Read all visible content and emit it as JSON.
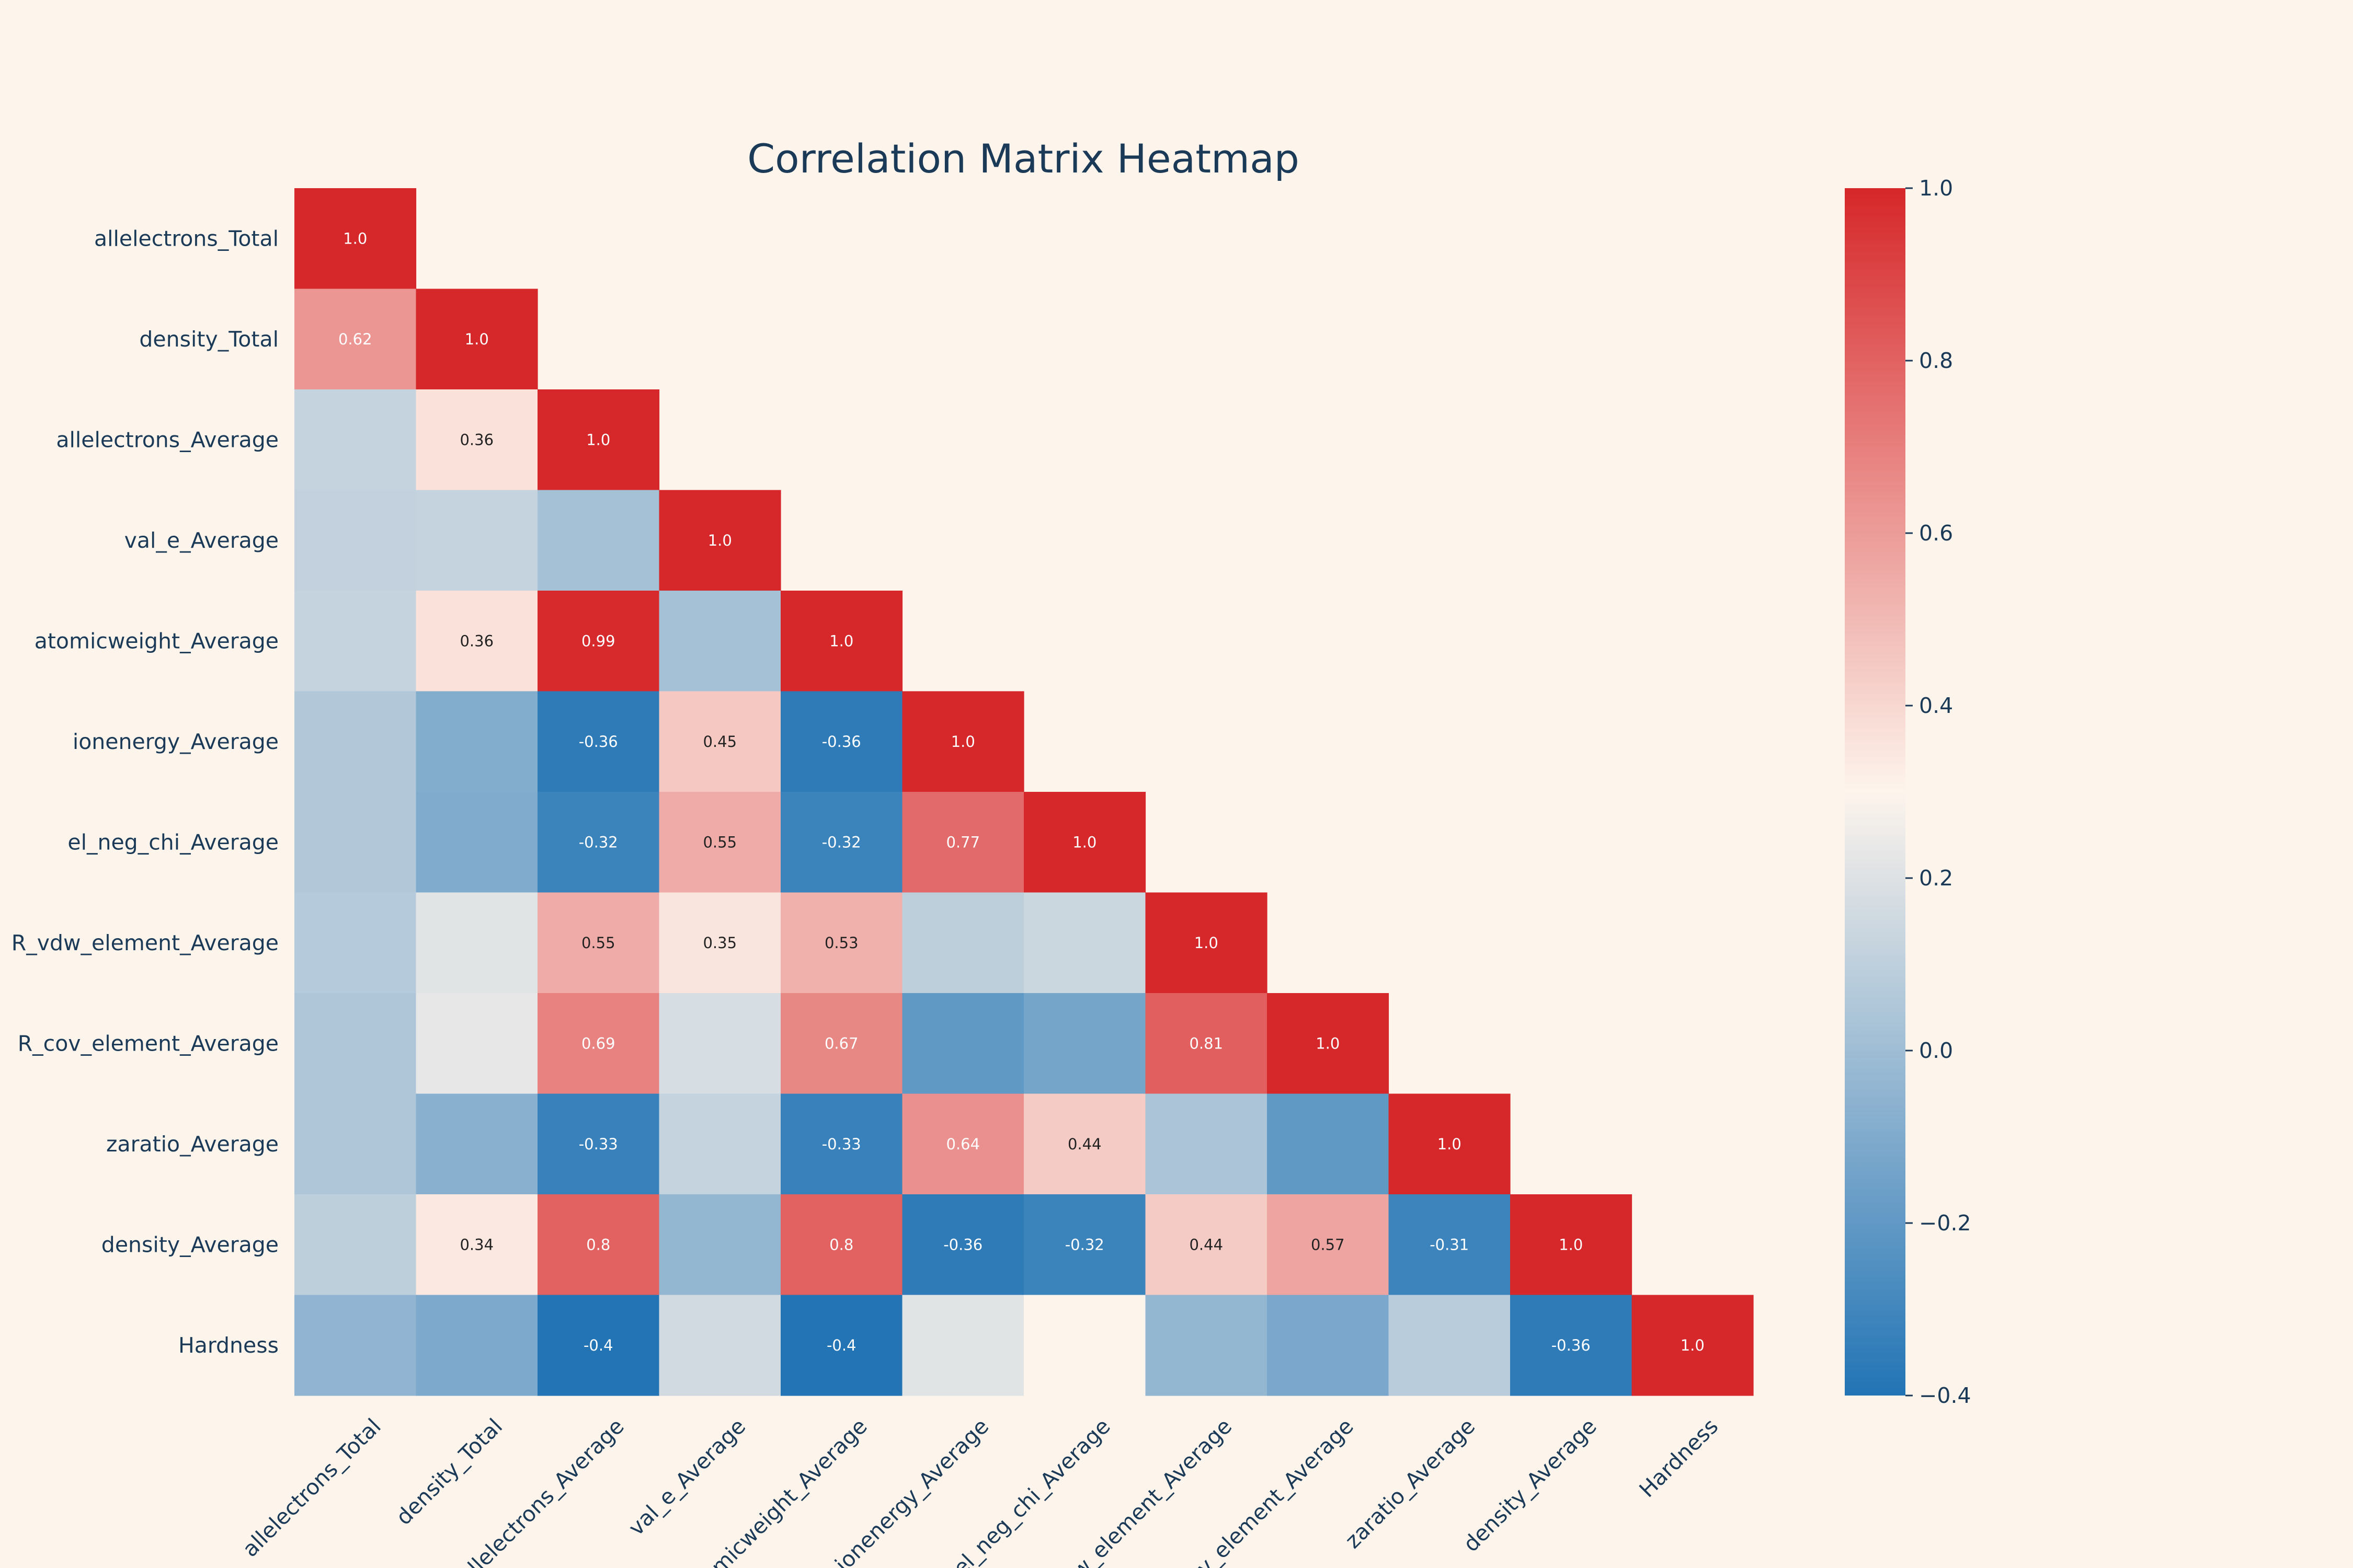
{
  "chart_data": {
    "type": "heatmap",
    "title": "Correlation Matrix Heatmap",
    "labels": [
      "allelectrons_Total",
      "density_Total",
      "allelectrons_Average",
      "val_e_Average",
      "atomicweight_Average",
      "ionenergy_Average",
      "el_neg_chi_Average",
      "R_vdw_element_Average",
      "R_cov_element_Average",
      "zaratio_Average",
      "density_Average",
      "Hardness"
    ],
    "matrix": [
      [
        1.0
      ],
      [
        0.62,
        1.0
      ],
      [
        0.12,
        0.36,
        1.0
      ],
      [
        0.11,
        0.12,
        0.02,
        1.0
      ],
      [
        0.12,
        0.36,
        0.99,
        0.02,
        1.0
      ],
      [
        0.06,
        -0.09,
        -0.36,
        0.45,
        -0.36,
        1.0
      ],
      [
        0.06,
        -0.1,
        -0.32,
        0.55,
        -0.32,
        0.77,
        1.0
      ],
      [
        0.07,
        0.21,
        0.55,
        0.35,
        0.53,
        0.1,
        0.14,
        1.0
      ],
      [
        0.05,
        0.23,
        0.69,
        0.18,
        0.67,
        -0.2,
        -0.13,
        0.81,
        1.0
      ],
      [
        0.05,
        -0.07,
        -0.33,
        0.12,
        -0.33,
        0.64,
        0.44,
        0.04,
        -0.2,
        1.0
      ],
      [
        0.1,
        0.34,
        0.8,
        -0.04,
        0.8,
        -0.36,
        -0.32,
        0.44,
        0.57,
        -0.31,
        1.0
      ],
      [
        -0.05,
        -0.11,
        -0.4,
        0.16,
        -0.4,
        0.21,
        0.3,
        -0.04,
        -0.12,
        0.08,
        -0.36,
        1.0
      ]
    ],
    "annotated_cells": [
      [
        0,
        0
      ],
      [
        1,
        0
      ],
      [
        1,
        1
      ],
      [
        2,
        1
      ],
      [
        2,
        2
      ],
      [
        3,
        3
      ],
      [
        4,
        1
      ],
      [
        4,
        2
      ],
      [
        4,
        4
      ],
      [
        5,
        2
      ],
      [
        5,
        3
      ],
      [
        5,
        4
      ],
      [
        5,
        5
      ],
      [
        6,
        2
      ],
      [
        6,
        3
      ],
      [
        6,
        4
      ],
      [
        6,
        5
      ],
      [
        6,
        6
      ],
      [
        7,
        2
      ],
      [
        7,
        3
      ],
      [
        7,
        4
      ],
      [
        7,
        7
      ],
      [
        8,
        2
      ],
      [
        8,
        4
      ],
      [
        8,
        7
      ],
      [
        8,
        8
      ],
      [
        9,
        2
      ],
      [
        9,
        4
      ],
      [
        9,
        5
      ],
      [
        9,
        6
      ],
      [
        9,
        9
      ],
      [
        10,
        1
      ],
      [
        10,
        2
      ],
      [
        10,
        4
      ],
      [
        10,
        5
      ],
      [
        10,
        6
      ],
      [
        10,
        7
      ],
      [
        10,
        8
      ],
      [
        10,
        9
      ],
      [
        10,
        10
      ],
      [
        11,
        2
      ],
      [
        11,
        4
      ],
      [
        11,
        10
      ],
      [
        11,
        11
      ]
    ],
    "colorbar": {
      "min": -0.4,
      "max": 1.0,
      "ticks": [
        1.0,
        0.8,
        0.6,
        0.4,
        0.2,
        0.0,
        -0.2,
        -0.4
      ],
      "tick_labels": [
        "1.0",
        "0.8",
        "0.6",
        "0.4",
        "0.2",
        "0.0",
        "−0.2",
        "−0.4"
      ]
    },
    "colors": {
      "negative": "#2274b5",
      "neutral": "#fdf4ec",
      "positive": "#d6272a",
      "text": "#1b3a57",
      "background": "#fdf4ec"
    }
  }
}
